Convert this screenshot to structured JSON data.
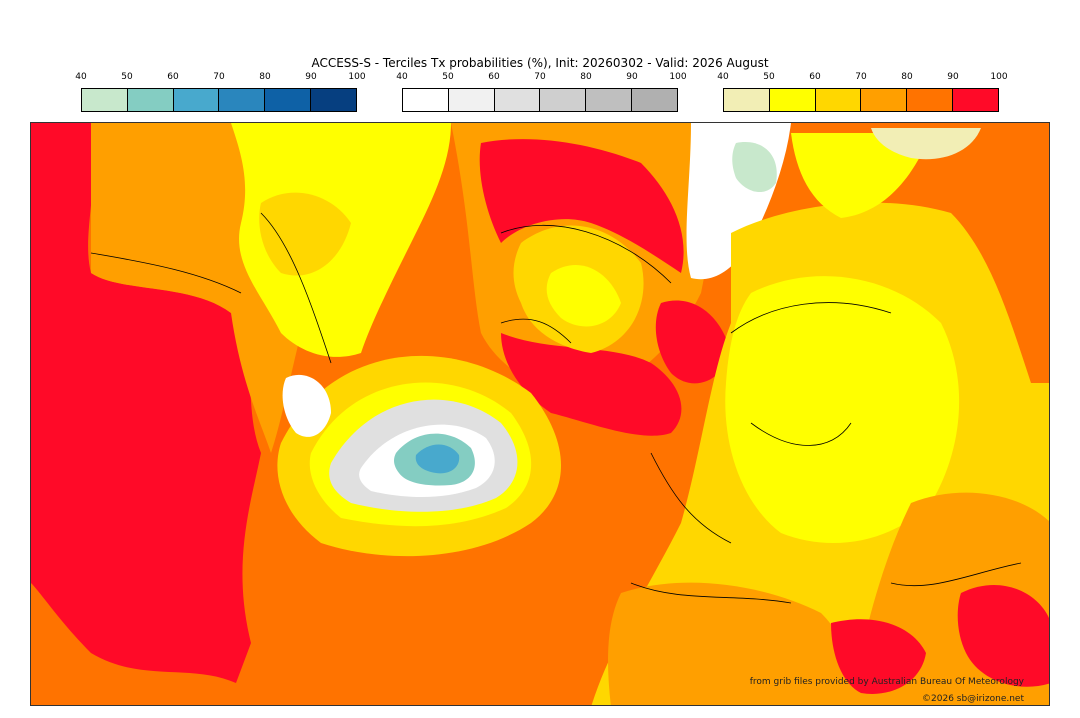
{
  "title": "ACCESS-S - Terciles Tx probabilities (%), Init: 20260302 - Valid: 2026 August",
  "legends": {
    "below": {
      "ticks": [
        "40",
        "50",
        "60",
        "70",
        "80",
        "90",
        "100"
      ],
      "colors": [
        "#c8e8cc",
        "#84cdc2",
        "#48a9cd",
        "#2a86bd",
        "#0e61a6",
        "#063f80"
      ]
    },
    "normal": {
      "ticks": [
        "40",
        "50",
        "60",
        "70",
        "80",
        "90",
        "100"
      ],
      "colors": [
        "#ffffff",
        "#f1f1f1",
        "#e0e0e0",
        "#cfcfcf",
        "#bfbfbf",
        "#b0b0b0"
      ]
    },
    "above": {
      "ticks": [
        "40",
        "50",
        "60",
        "70",
        "80",
        "90",
        "100"
      ],
      "colors": [
        "#f2eeb5",
        "#ffff00",
        "#ffd700",
        "#ff9f00",
        "#ff7300",
        "#ff0a28"
      ]
    }
  },
  "credits": {
    "line1": "from grib files provided by Australian Bureau Of Meteorology",
    "line2": "©2026 sb@irizone.net"
  }
}
